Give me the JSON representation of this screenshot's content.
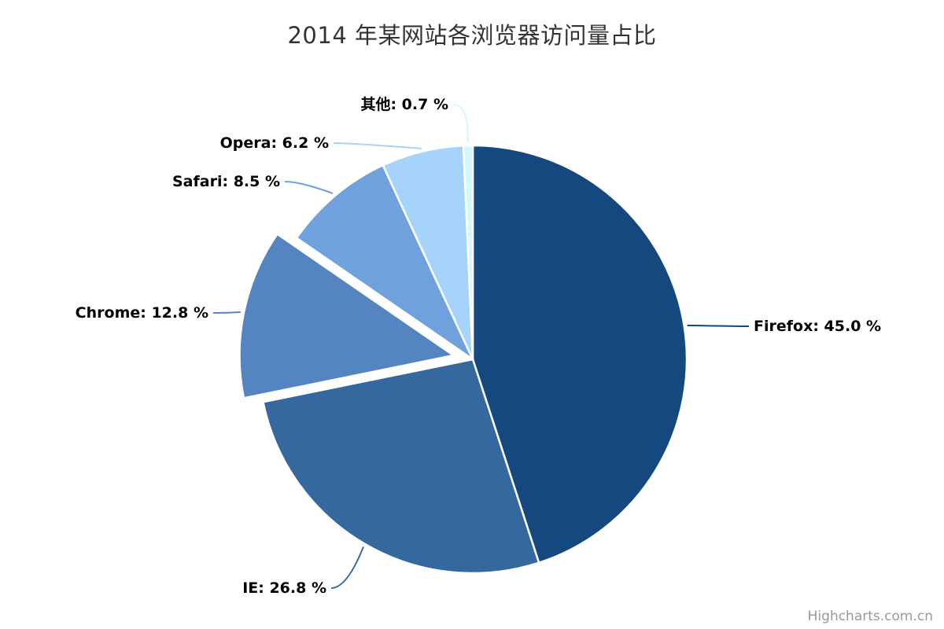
{
  "credits": {
    "text": "Highcharts.com.cn"
  },
  "chart_data": {
    "type": "pie",
    "title": "2014 年某网站各浏览器访问量占比",
    "unit": "%",
    "label_format": "{name}: {value} %",
    "legend": false,
    "start_angle_deg": 0,
    "direction": "clockwise",
    "series": [
      {
        "name": "Firefox",
        "slug": "firefox",
        "value": 45.0,
        "color": "#15487F",
        "sliced": false
      },
      {
        "name": "IE",
        "slug": "ie",
        "value": 26.8,
        "color": "#34689F",
        "sliced": false
      },
      {
        "name": "Chrome",
        "slug": "chrome",
        "value": 12.8,
        "color": "#5585C1",
        "sliced": true
      },
      {
        "name": "Safari",
        "slug": "safari",
        "value": 8.5,
        "color": "#6FA1DC",
        "sliced": false
      },
      {
        "name": "Opera",
        "slug": "opera",
        "value": 6.2,
        "color": "#A5D3FA",
        "sliced": false
      },
      {
        "name": "其他",
        "slug": "others",
        "value": 0.7,
        "color": "#D1F9FB",
        "sliced": false
      }
    ]
  }
}
